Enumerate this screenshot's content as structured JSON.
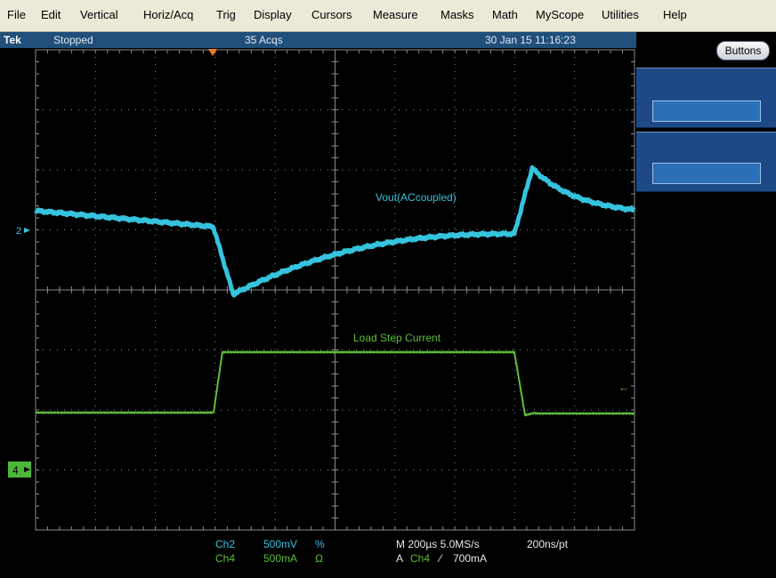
{
  "menu": {
    "items": [
      "File",
      "Edit",
      "Vertical",
      "Horiz/Acq",
      "Trig",
      "Display",
      "Cursors",
      "Measure",
      "Masks",
      "Math",
      "MyScope",
      "Utilities",
      "Help"
    ]
  },
  "status": {
    "brand": "Tek",
    "run_state": "Stopped",
    "acquisitions": "35 Acqs",
    "timestamp": "30 Jan 15 11:16:23"
  },
  "side_panel": {
    "buttons_label": "Buttons"
  },
  "waveforms": {
    "ch2_label": "Vout(ACcoupled)",
    "ch4_label": "Load Step Current",
    "ch2_marker": "2",
    "ch4_marker": "4"
  },
  "readout": {
    "ch2_name": "Ch2",
    "ch2_scale": "500mV",
    "ch2_coupling_symbol": "%",
    "ch4_name": "Ch4",
    "ch4_scale": "500mA",
    "ch4_coupling_symbol": "Ω",
    "horizontal": "M 200µs 5.0MS/s",
    "resolution": "200ns/pt",
    "trigger_prefix": "A",
    "trigger_source": "Ch4",
    "trigger_slope": "⁄",
    "trigger_level": "700mA"
  },
  "colors": {
    "ch2": "#35c3dd",
    "ch4": "#5fbf3a",
    "grid": "#8a8a8a",
    "trigger_marker": "#f07a1a"
  }
}
